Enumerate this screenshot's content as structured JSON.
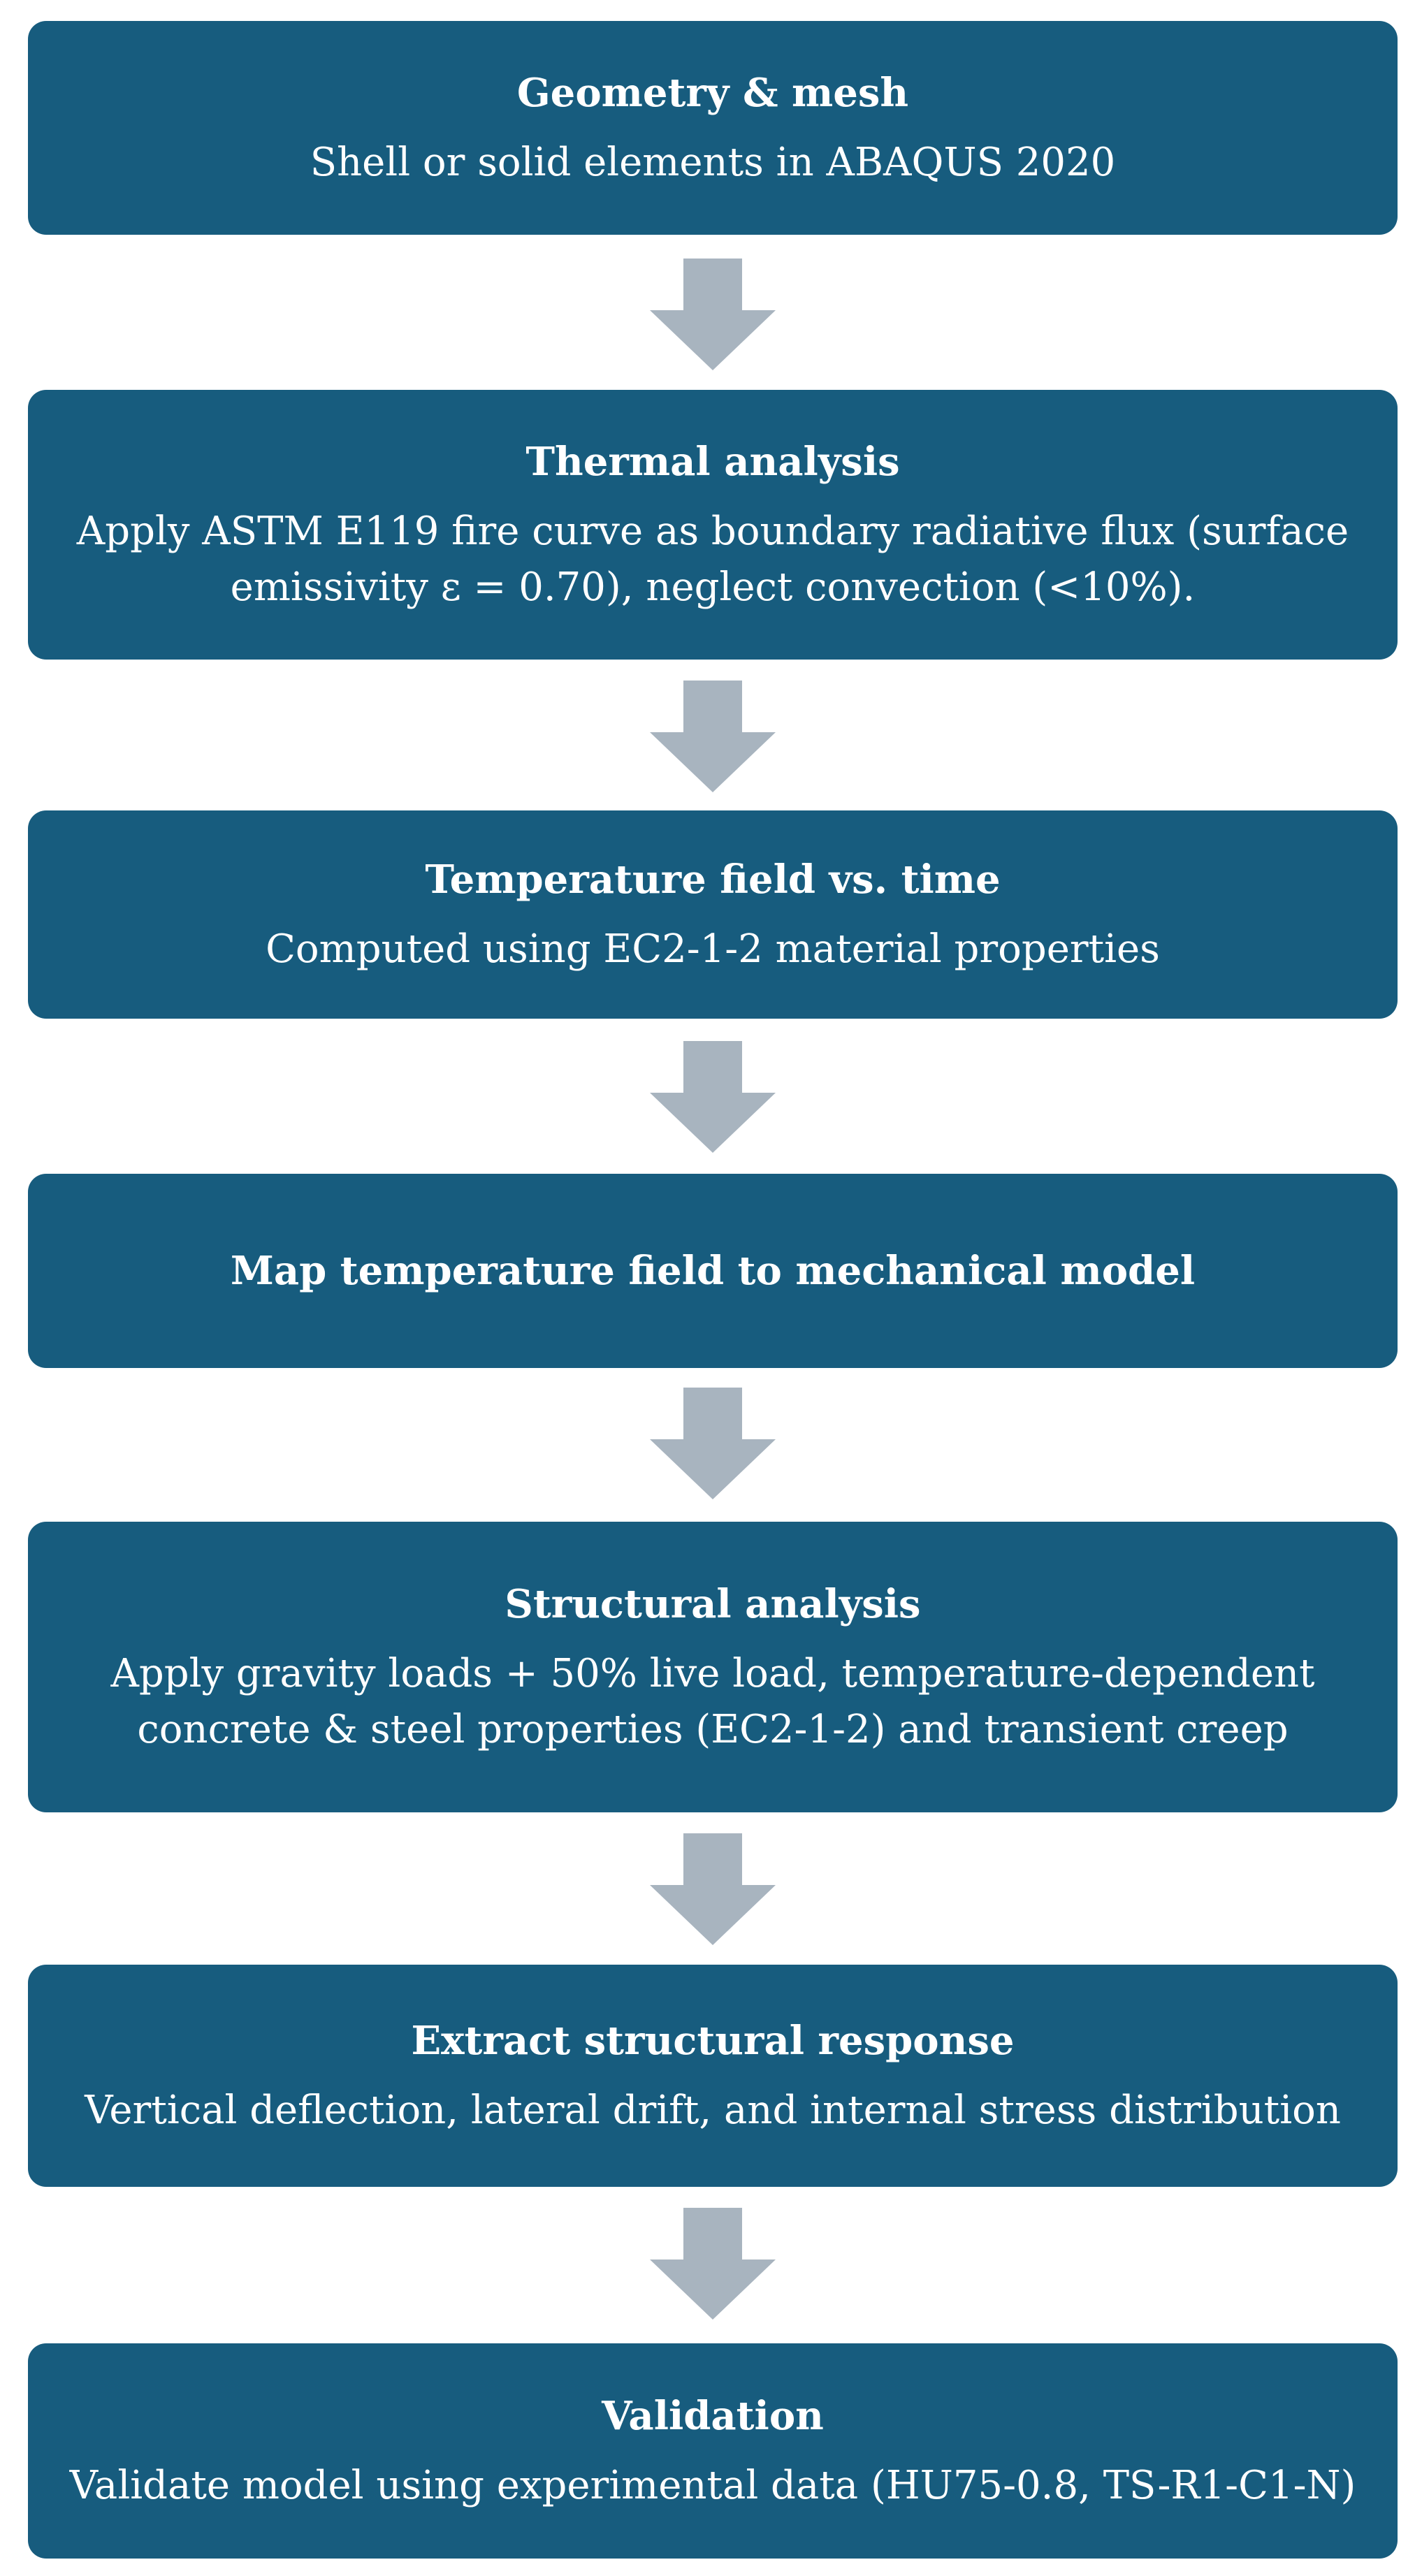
{
  "steps": [
    {
      "title": "Geometry & mesh",
      "description": "Shell or solid elements in ABAQUS 2020"
    },
    {
      "title": "Thermal analysis",
      "description": "Apply ASTM E119 fire curve as boundary radiative flux (surface emissivity ε = 0.70), neglect convection (<10%)."
    },
    {
      "title": "Temperature field vs. time",
      "description": "Computed using EC2-1-2 material properties"
    },
    {
      "title": "Map temperature field to mechanical model"
    },
    {
      "title": "Structural analysis",
      "description": "Apply gravity loads + 50% live load, temperature-dependent concrete & steel properties (EC2-1-2) and transient creep"
    },
    {
      "title": "Extract structural response",
      "description": "Vertical deflection, lateral drift, and internal stress distribution"
    },
    {
      "title": "Validation",
      "description": "Validate model using experimental data (HU75-0.8, TS-R1-C1-N)"
    }
  ],
  "colors": {
    "box": "#175c7e",
    "arrow": "#a8b4bf",
    "text": "#ffffff"
  }
}
